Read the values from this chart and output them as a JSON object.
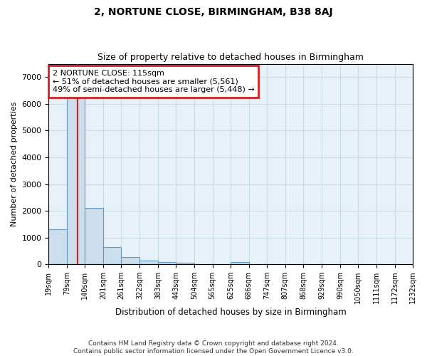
{
  "title": "2, NORTUNE CLOSE, BIRMINGHAM, B38 8AJ",
  "subtitle": "Size of property relative to detached houses in Birmingham",
  "xlabel": "Distribution of detached houses by size in Birmingham",
  "ylabel": "Number of detached properties",
  "footer_line1": "Contains HM Land Registry data © Crown copyright and database right 2024.",
  "footer_line2": "Contains public sector information licensed under the Open Government Licence v3.0.",
  "annotation_line1": "2 NORTUNE CLOSE: 115sqm",
  "annotation_line2": "← 51% of detached houses are smaller (5,561)",
  "annotation_line3": "49% of semi-detached houses are larger (5,448) →",
  "property_size_sqm": 115,
  "bar_color": "#ccdded",
  "bar_edge_color": "#6699bb",
  "red_line_color": "#cc2222",
  "background_color": "#ffffff",
  "grid_color": "#c8dce8",
  "bins": [
    19,
    79,
    140,
    201,
    261,
    322,
    383,
    443,
    504,
    565,
    625,
    686,
    747,
    807,
    868,
    929,
    990,
    1050,
    1111,
    1172,
    1232
  ],
  "counts": [
    1300,
    6600,
    2100,
    650,
    280,
    140,
    90,
    50,
    0,
    0,
    80,
    0,
    0,
    0,
    0,
    0,
    0,
    0,
    0,
    0
  ],
  "ylim": [
    0,
    7500
  ],
  "yticks": [
    0,
    1000,
    2000,
    3000,
    4000,
    5000,
    6000,
    7000
  ]
}
